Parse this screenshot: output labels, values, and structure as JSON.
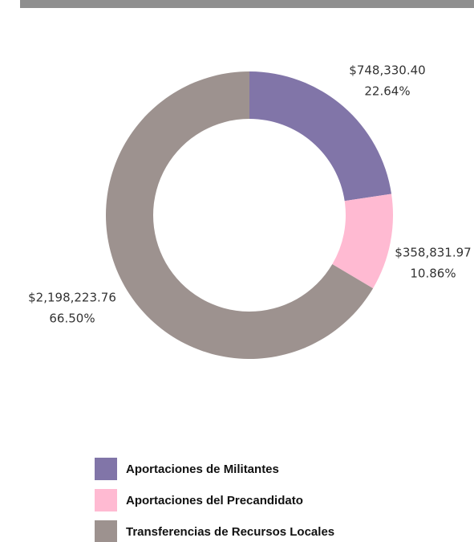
{
  "chart_data": {
    "type": "donut",
    "categories": [
      "Aportaciones de Militantes",
      "Aportaciones del Precandidato",
      "Transferencias de Recursos Locales"
    ],
    "values": [
      748330.4,
      358831.97,
      2198223.76
    ],
    "value_labels": [
      "$748,330.40",
      "$358,831.97",
      "$2,198,223.76"
    ],
    "percentages": [
      22.64,
      10.86,
      66.5
    ],
    "percentage_labels": [
      "22.64%",
      "10.86%",
      "66.50%"
    ],
    "colors": [
      "#8175a8",
      "#ffbad2",
      "#9d928f"
    ]
  }
}
